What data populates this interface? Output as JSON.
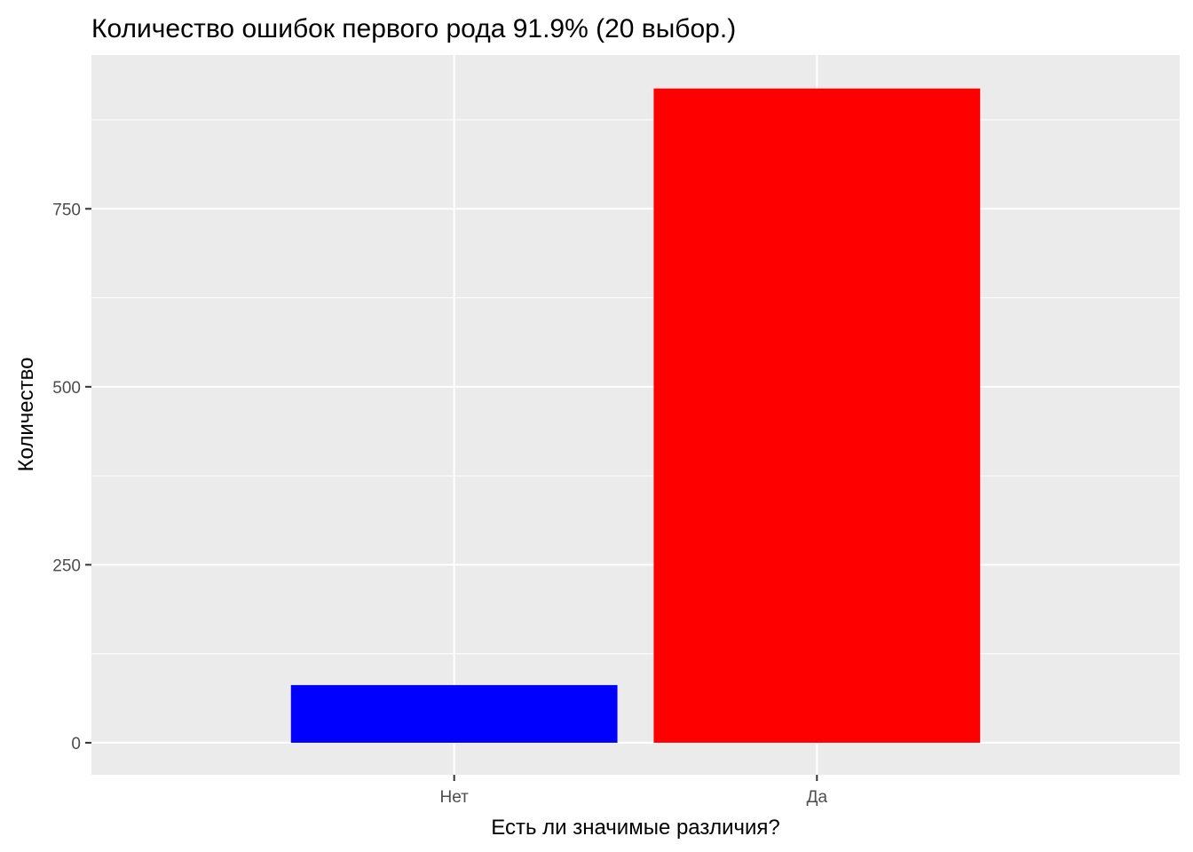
{
  "chart_data": {
    "type": "bar",
    "title": "Количество ошибок первого рода 91.9% (20 выбор.)",
    "xlabel": "Есть ли значимые различия?",
    "ylabel": "Количество",
    "categories": [
      "Нет",
      "Да"
    ],
    "values": [
      81,
      919
    ],
    "bar_colors": [
      "#0000FF",
      "#FF0000"
    ],
    "ylim": [
      -45,
      966
    ],
    "yticks": [
      0,
      250,
      500,
      750
    ],
    "grid": true,
    "panel_background": "#EBEBEB",
    "legend": "none"
  }
}
